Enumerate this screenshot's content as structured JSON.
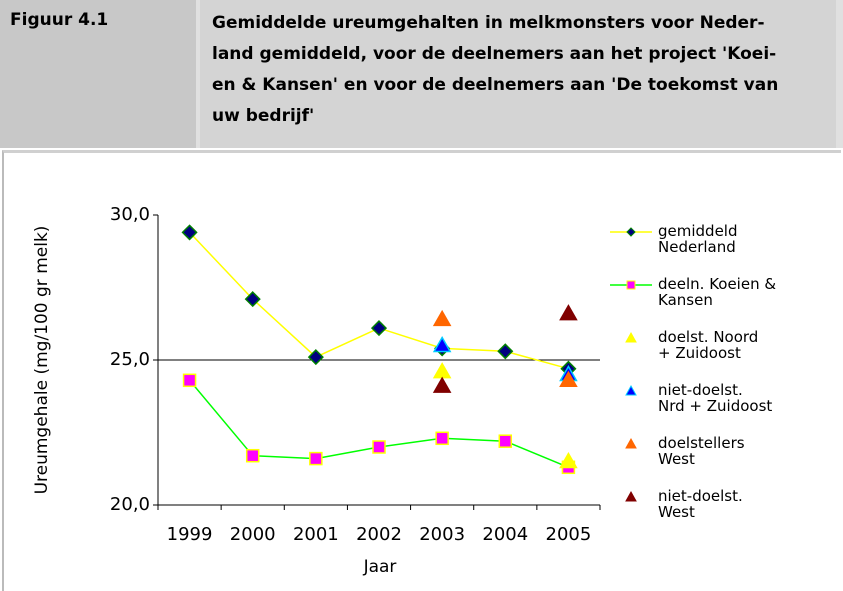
{
  "header": {
    "label": "Figuur 4.1",
    "caption_lines": [
      "Gemiddelde ureumgehalten in melkmonsters voor Neder-",
      "land gemiddeld, voor de deelnemers aan het project 'Koei-",
      "en & Kansen' en voor de deelnemers aan 'De toekomst van",
      "uw bedrijf'"
    ]
  },
  "chart_data": {
    "type": "line",
    "y_label": "Ureumgehale (mg/100 gr melk)",
    "x_label": "Jaar",
    "categories": [
      "1999",
      "2000",
      "2001",
      "2002",
      "2003",
      "2004",
      "2005"
    ],
    "ylim": [
      20,
      30
    ],
    "yticks": [
      {
        "value": 20,
        "label": "20,0"
      },
      {
        "value": 25,
        "label": "25,0"
      },
      {
        "value": 30,
        "label": "30,0"
      }
    ],
    "grid": true,
    "series": [
      {
        "name": "gemiddeld\nNederland",
        "color": "#ffff00",
        "marker_color": "#000080",
        "marker_edge": "#008000",
        "marker": "diamond",
        "line": true,
        "values": [
          29.4,
          27.1,
          25.1,
          26.1,
          25.4,
          25.3,
          24.7
        ]
      },
      {
        "name": "deeln. Koeien &\nKansen",
        "color": "#00ff00",
        "marker_color": "#ff00ff",
        "marker_edge": "#ffff00",
        "marker": "square",
        "line": true,
        "values": [
          24.3,
          21.7,
          21.6,
          22.0,
          22.3,
          22.2,
          21.3
        ]
      },
      {
        "name": "doelst. Noord\n+ Zuidoost",
        "color": "#ffff00",
        "marker_color": "#ffff00",
        "marker_edge": "#ffff00",
        "marker": "triangle",
        "line": false,
        "values": [
          null,
          null,
          null,
          null,
          24.6,
          null,
          21.5
        ]
      },
      {
        "name": "niet-doelst.\nNrd + Zuidoost",
        "color": "#00ccff",
        "marker_color": "#0000ff",
        "marker_edge": "#00ccff",
        "marker": "triangle",
        "line": false,
        "values": [
          null,
          null,
          null,
          null,
          25.5,
          null,
          24.5
        ]
      },
      {
        "name": "doelstellers\nWest",
        "color": "#ff6600",
        "marker_color": "#ff6600",
        "marker_edge": "#ff6600",
        "marker": "triangle",
        "line": false,
        "values": [
          null,
          null,
          null,
          null,
          26.4,
          null,
          24.3
        ]
      },
      {
        "name": "niet-doelst.\nWest",
        "color": "#800000",
        "marker_color": "#800000",
        "marker_edge": "#800000",
        "marker": "triangle",
        "line": false,
        "values": [
          null,
          null,
          null,
          null,
          24.1,
          null,
          26.6
        ]
      }
    ]
  }
}
